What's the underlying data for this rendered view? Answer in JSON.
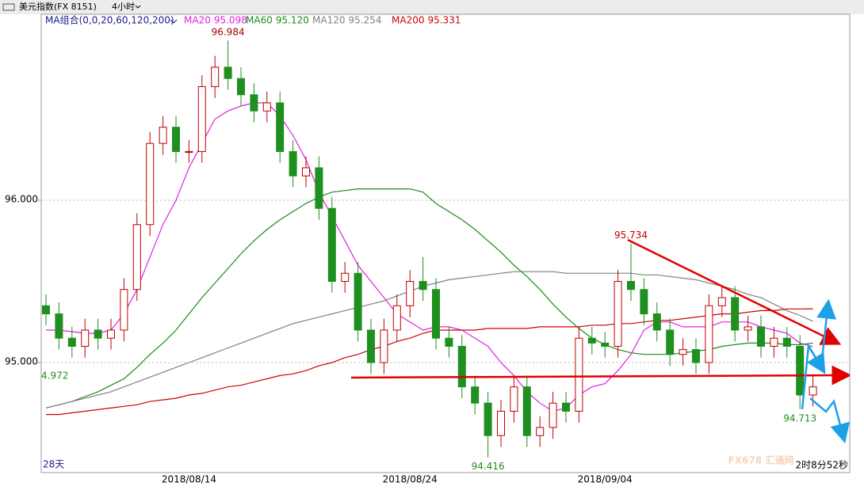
{
  "header": {
    "title": "美元指数(FX 8151)",
    "period": "4小时"
  },
  "chart_data": {
    "type": "candlestick",
    "ma_group": "MA组合(0,0,20,60,120,200)",
    "categories": [
      null,
      null,
      null,
      null,
      null,
      null,
      null,
      null,
      null,
      null,
      null,
      "2018/08/14",
      null,
      null,
      null,
      null,
      null,
      null,
      null,
      null,
      null,
      null,
      null,
      null,
      null,
      null,
      null,
      null,
      "2018/08/24",
      null,
      null,
      null,
      null,
      null,
      null,
      null,
      null,
      null,
      null,
      null,
      null,
      null,
      null,
      "2018/09/04",
      null,
      null,
      null,
      null,
      null,
      null,
      null,
      null,
      null,
      null,
      null,
      null,
      null,
      null,
      null,
      null
    ],
    "open": [
      95.35,
      95.3,
      95.15,
      95.1,
      95.2,
      95.15,
      95.2,
      95.45,
      95.85,
      96.35,
      96.45,
      96.3,
      96.3,
      96.7,
      96.82,
      96.75,
      96.65,
      96.55,
      96.6,
      96.3,
      96.15,
      96.2,
      95.95,
      95.5,
      95.55,
      95.2,
      95.0,
      95.2,
      95.35,
      95.5,
      95.45,
      95.15,
      95.1,
      94.85,
      94.75,
      94.55,
      94.7,
      94.85,
      94.55,
      94.6,
      94.75,
      94.7,
      95.15,
      95.12,
      95.1,
      95.5,
      95.45,
      95.3,
      95.2,
      95.05,
      95.08,
      95.0,
      95.35,
      95.4,
      95.2,
      95.22,
      95.1,
      95.15,
      95.1,
      94.8
    ],
    "high": [
      95.42,
      95.37,
      95.22,
      95.27,
      95.27,
      95.27,
      95.52,
      95.92,
      96.42,
      96.52,
      96.52,
      96.37,
      96.77,
      96.89,
      96.984,
      96.82,
      96.72,
      96.67,
      96.67,
      96.37,
      96.27,
      96.27,
      96.02,
      95.62,
      95.62,
      95.27,
      95.27,
      95.42,
      95.57,
      95.65,
      95.52,
      95.22,
      95.17,
      94.92,
      94.82,
      94.77,
      94.92,
      94.92,
      94.67,
      94.82,
      94.82,
      95.22,
      95.22,
      95.19,
      95.57,
      95.734,
      95.52,
      95.37,
      95.27,
      95.15,
      95.15,
      95.42,
      95.47,
      95.47,
      95.29,
      95.29,
      95.22,
      95.22,
      95.17,
      94.92
    ],
    "low": [
      95.23,
      95.08,
      95.03,
      95.03,
      95.08,
      95.08,
      95.13,
      95.38,
      95.78,
      96.28,
      96.23,
      96.23,
      96.23,
      96.63,
      96.68,
      96.58,
      96.48,
      96.48,
      96.23,
      96.08,
      96.08,
      95.88,
      95.43,
      95.43,
      95.13,
      94.93,
      94.93,
      95.13,
      95.28,
      95.38,
      95.08,
      95.03,
      94.78,
      94.68,
      94.416,
      94.48,
      94.63,
      94.48,
      94.48,
      94.53,
      94.63,
      94.63,
      95.05,
      95.03,
      95.03,
      95.38,
      95.23,
      95.13,
      94.98,
      94.98,
      94.93,
      94.93,
      95.28,
      95.13,
      95.13,
      95.03,
      95.03,
      95.03,
      94.713,
      94.73
    ],
    "close": [
      95.3,
      95.15,
      95.1,
      95.2,
      95.15,
      95.2,
      95.45,
      95.85,
      96.35,
      96.45,
      96.3,
      96.3,
      96.7,
      96.82,
      96.75,
      96.65,
      96.55,
      96.6,
      96.3,
      96.15,
      96.2,
      95.95,
      95.5,
      95.55,
      95.2,
      95.0,
      95.2,
      95.35,
      95.5,
      95.45,
      95.15,
      95.1,
      94.85,
      94.75,
      94.55,
      94.7,
      94.85,
      94.55,
      94.6,
      94.75,
      94.7,
      95.15,
      95.12,
      95.1,
      95.5,
      95.45,
      95.3,
      95.2,
      95.05,
      95.08,
      95.0,
      95.35,
      95.4,
      95.2,
      95.22,
      95.1,
      95.15,
      95.1,
      94.8,
      94.85
    ],
    "up_color": "#c00000",
    "down_color": "#1f8f1f",
    "series": [
      {
        "name": "MA20",
        "color": "#e020e0",
        "legend_value": "95.098",
        "values": [
          95.2,
          95.2,
          95.19,
          95.18,
          95.18,
          95.2,
          95.3,
          95.45,
          95.65,
          95.85,
          96.0,
          96.2,
          96.35,
          96.5,
          96.55,
          96.58,
          96.6,
          96.6,
          96.52,
          96.4,
          96.25,
          96.05,
          95.9,
          95.75,
          95.6,
          95.5,
          95.4,
          95.3,
          95.25,
          95.2,
          95.22,
          95.22,
          95.2,
          95.15,
          95.1,
          95.0,
          94.92,
          94.82,
          94.75,
          94.7,
          94.72,
          94.8,
          94.85,
          94.87,
          94.95,
          95.05,
          95.2,
          95.25,
          95.25,
          95.22,
          95.22,
          95.22,
          95.25,
          95.25,
          95.25,
          95.22,
          95.2,
          95.18,
          95.12,
          95.098
        ]
      },
      {
        "name": "MA60",
        "color": "#1a8a1a",
        "legend_value": "95.120",
        "values": [
          94.72,
          94.74,
          94.76,
          94.79,
          94.82,
          94.86,
          94.9,
          94.97,
          95.05,
          95.12,
          95.2,
          95.3,
          95.4,
          95.49,
          95.58,
          95.67,
          95.75,
          95.82,
          95.88,
          95.93,
          95.98,
          96.02,
          96.05,
          96.06,
          96.07,
          96.07,
          96.07,
          96.07,
          96.07,
          96.05,
          95.98,
          95.93,
          95.88,
          95.82,
          95.75,
          95.68,
          95.6,
          95.53,
          95.45,
          95.36,
          95.28,
          95.21,
          95.15,
          95.11,
          95.08,
          95.06,
          95.05,
          95.05,
          95.05,
          95.06,
          95.07,
          95.08,
          95.1,
          95.11,
          95.12,
          95.12,
          95.12,
          95.11,
          95.11,
          95.12
        ]
      },
      {
        "name": "MA120",
        "color": "#808080",
        "legend_value": "95.254",
        "values": [
          94.72,
          94.74,
          94.76,
          94.78,
          94.8,
          94.82,
          94.85,
          94.88,
          94.91,
          94.94,
          94.97,
          95.0,
          95.03,
          95.06,
          95.09,
          95.12,
          95.15,
          95.18,
          95.21,
          95.24,
          95.26,
          95.28,
          95.3,
          95.32,
          95.34,
          95.36,
          95.38,
          95.41,
          95.44,
          95.47,
          95.49,
          95.51,
          95.52,
          95.53,
          95.54,
          95.55,
          95.56,
          95.56,
          95.56,
          95.56,
          95.55,
          95.55,
          95.55,
          95.55,
          95.55,
          95.55,
          95.54,
          95.54,
          95.53,
          95.52,
          95.51,
          95.49,
          95.47,
          95.45,
          95.42,
          95.4,
          95.36,
          95.32,
          95.29,
          95.254
        ]
      },
      {
        "name": "MA200",
        "color": "#d00000",
        "legend_value": "95.331",
        "values": [
          94.68,
          94.68,
          94.69,
          94.7,
          94.71,
          94.72,
          94.73,
          94.74,
          94.76,
          94.77,
          94.78,
          94.8,
          94.81,
          94.83,
          94.85,
          94.86,
          94.88,
          94.9,
          94.92,
          94.93,
          94.95,
          94.98,
          95.0,
          95.03,
          95.05,
          95.08,
          95.1,
          95.13,
          95.15,
          95.18,
          95.2,
          95.2,
          95.2,
          95.2,
          95.21,
          95.21,
          95.21,
          95.21,
          95.22,
          95.22,
          95.22,
          95.22,
          95.23,
          95.23,
          95.24,
          95.24,
          95.25,
          95.26,
          95.26,
          95.27,
          95.28,
          95.29,
          95.3,
          95.3,
          95.31,
          95.32,
          95.32,
          95.33,
          95.33,
          95.331
        ]
      }
    ],
    "ylim": [
      94.322,
      97.146
    ],
    "yticks": [
      {
        "value": 95,
        "label": "95.000"
      },
      {
        "value": 96,
        "label": "96.000"
      }
    ],
    "grid": true,
    "left_label": "4.972",
    "range_label": "28天",
    "countdown": "2时8分52秒",
    "watermark": "FX678 汇通网"
  }
}
